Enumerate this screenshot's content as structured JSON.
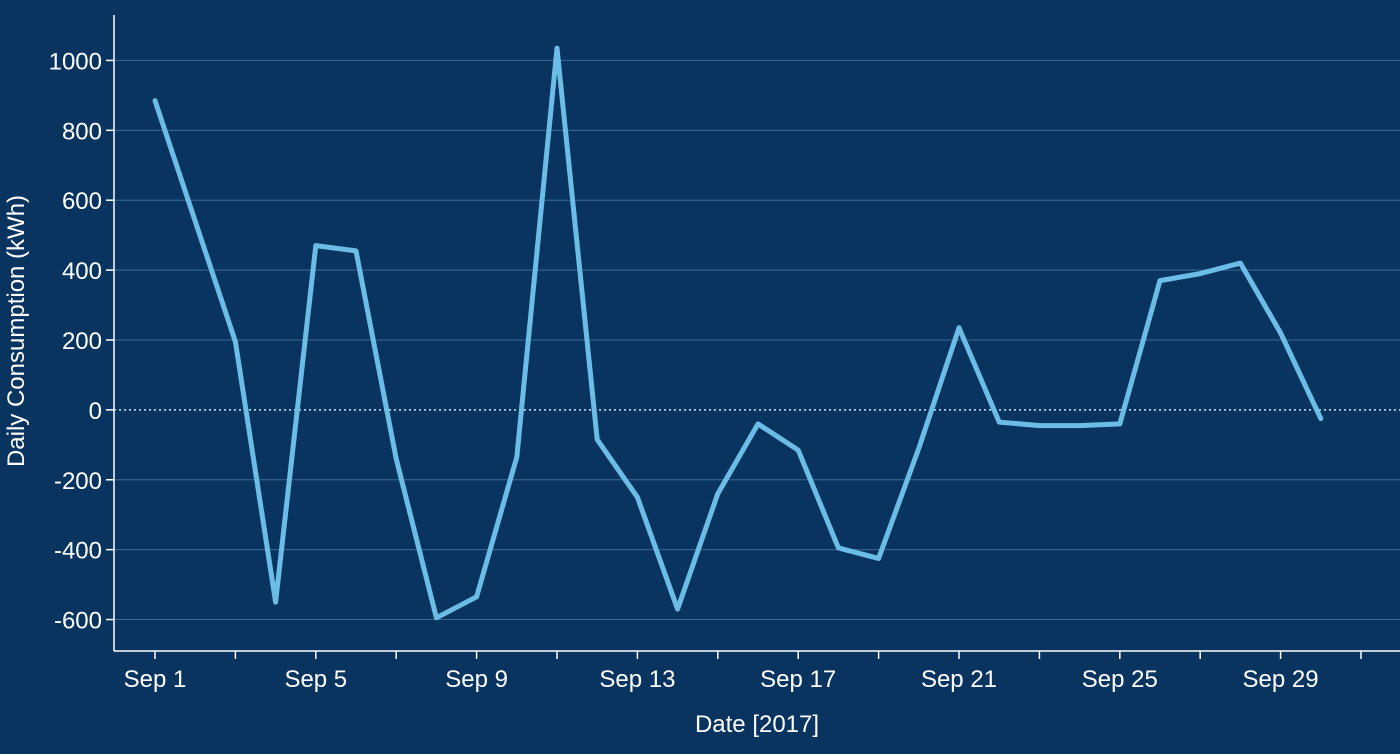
{
  "chart_data": {
    "type": "line",
    "title": "",
    "xlabel": "Date [2017]",
    "ylabel": "Daily Consumption (kWh)",
    "ylim": [
      -690,
      1130
    ],
    "yticks": [
      -600,
      -400,
      -200,
      0,
      200,
      400,
      600,
      800,
      1000
    ],
    "x_ticks": [
      {
        "day": 1,
        "label": "Sep 1"
      },
      {
        "day": 5,
        "label": "Sep 5"
      },
      {
        "day": 9,
        "label": "Sep 9"
      },
      {
        "day": 13,
        "label": "Sep 13"
      },
      {
        "day": 17,
        "label": "Sep 17"
      },
      {
        "day": 21,
        "label": "Sep 21"
      },
      {
        "day": 25,
        "label": "Sep 25"
      },
      {
        "day": 29,
        "label": "Sep 29"
      }
    ],
    "x": [
      "2017-09-01",
      "2017-09-02",
      "2017-09-03",
      "2017-09-04",
      "2017-09-05",
      "2017-09-06",
      "2017-09-07",
      "2017-09-08",
      "2017-09-09",
      "2017-09-10",
      "2017-09-11",
      "2017-09-12",
      "2017-09-13",
      "2017-09-14",
      "2017-09-15",
      "2017-09-16",
      "2017-09-17",
      "2017-09-18",
      "2017-09-19",
      "2017-09-20",
      "2017-09-21",
      "2017-09-22",
      "2017-09-23",
      "2017-09-24",
      "2017-09-25",
      "2017-09-26",
      "2017-09-27",
      "2017-09-28",
      "2017-09-29",
      "2017-09-30"
    ],
    "series": [
      {
        "values": [
          885,
          540,
          195,
          -550,
          470,
          455,
          -140,
          -595,
          -535,
          -135,
          1035,
          -85,
          -250,
          -570,
          -240,
          -40,
          -115,
          -395,
          -425,
          -110,
          235,
          -35,
          -45,
          -45,
          -40,
          370,
          390,
          420,
          220,
          -25
        ]
      }
    ],
    "grid": true,
    "zero_line": "dotted",
    "colors": {
      "background": "#0a3460",
      "line": "#6bbde6",
      "grid": "#3a6a94",
      "zero": "#cfe3f4",
      "text": "#ffffff"
    }
  }
}
